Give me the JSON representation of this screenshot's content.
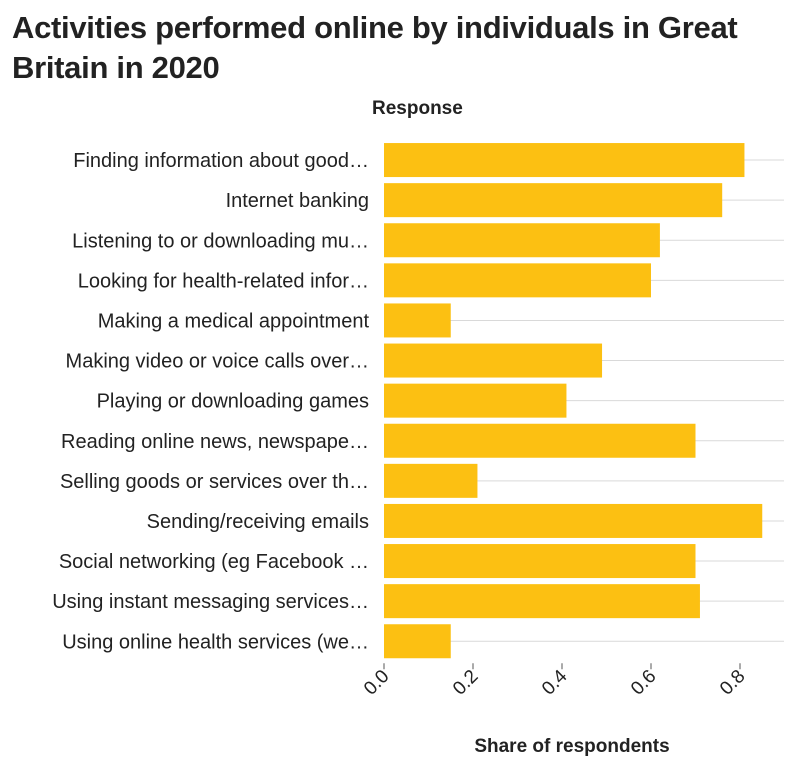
{
  "chart_data": {
    "type": "bar",
    "orientation": "horizontal",
    "title": "Activities performed online by individuals in Great Britain in 2020",
    "ylabel": "Response",
    "xlabel": "Share of respondents",
    "xlim": [
      0,
      0.85
    ],
    "xticks": [
      "0.0",
      "0.2",
      "0.4",
      "0.6",
      "0.8"
    ],
    "grid": true,
    "bar_color": "#fcc012",
    "categories": [
      "Finding information about good…",
      "Internet banking",
      "Listening to or downloading mu…",
      "Looking for health-related infor…",
      "Making a medical appointment",
      "Making video or voice calls over…",
      "Playing or downloading games",
      "Reading online news, newspape…",
      "Selling goods or services over th…",
      "Sending/receiving emails",
      "Social networking (eg Facebook …",
      "Using instant messaging services…",
      "Using online health services (we…"
    ],
    "values": [
      0.81,
      0.76,
      0.62,
      0.6,
      0.15,
      0.49,
      0.41,
      0.7,
      0.21,
      0.85,
      0.7,
      0.71,
      0.15
    ]
  }
}
